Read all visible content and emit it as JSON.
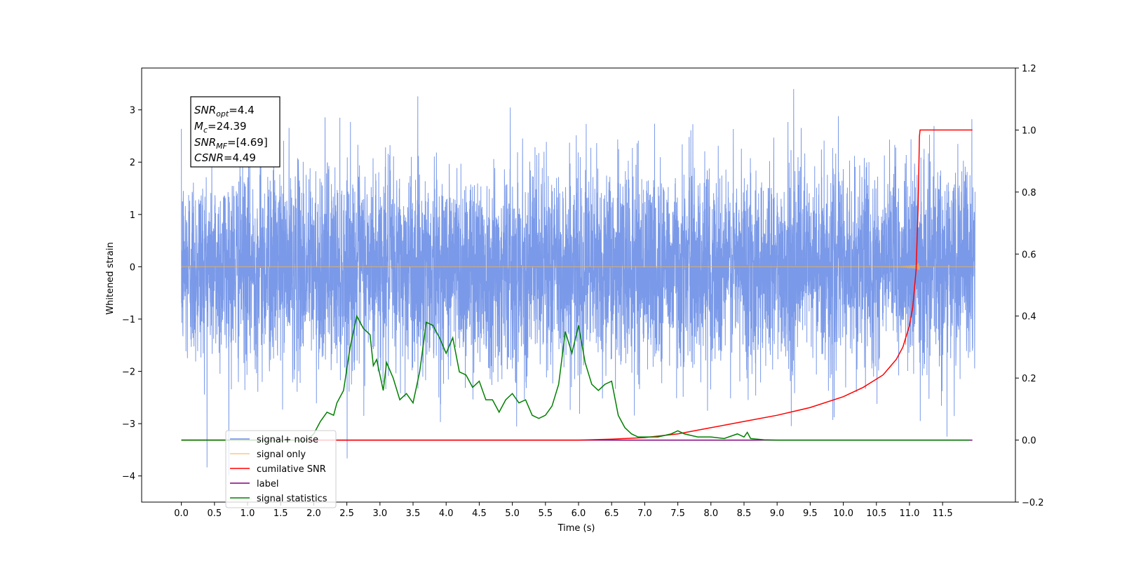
{
  "chart_data": {
    "type": "line",
    "xlabel": "Time (s)",
    "ylabel": "Whitened strain",
    "xlim": [
      -0.6,
      12.6
    ],
    "ylim": [
      -4.5,
      3.8
    ],
    "y2lim": [
      -0.2,
      1.2
    ],
    "x_ticks": [
      "0.0",
      "0.5",
      "1.0",
      "1.5",
      "2.0",
      "2.5",
      "3.0",
      "3.5",
      "4.0",
      "4.5",
      "5.0",
      "5.5",
      "6.0",
      "6.5",
      "7.0",
      "7.5",
      "8.0",
      "8.5",
      "9.0",
      "9.5",
      "10.0",
      "10.5",
      "11.0",
      "11.5"
    ],
    "y_ticks": [
      "−4",
      "−3",
      "−2",
      "−1",
      "0",
      "1",
      "2",
      "3"
    ],
    "y2_ticks": [
      "−0.2",
      "0.0",
      "0.2",
      "0.4",
      "0.6",
      "0.8",
      "1.0",
      "1.2"
    ],
    "annotation": {
      "snr_opt": "=4.4",
      "mc": "=24.39",
      "snr_mf": "=[4.69]",
      "csnr": "=4.49"
    },
    "legend_position": "lower-left",
    "series": [
      {
        "name": "signal+ noise",
        "color": "#6c8ee6",
        "axis": "left"
      },
      {
        "name": "signal only",
        "color": "#f5b34a",
        "axis": "left",
        "merger_time": 11.15
      },
      {
        "name": "cumilative SNR",
        "color": "#ff0000",
        "axis": "right",
        "x": [
          0,
          6.0,
          6.5,
          7.0,
          7.5,
          8.0,
          8.5,
          9.0,
          9.5,
          10.0,
          10.3,
          10.6,
          10.8,
          10.9,
          11.0,
          11.05,
          11.1,
          11.13,
          11.15,
          11.16,
          11.95
        ],
        "values": [
          0,
          0,
          0.003,
          0.008,
          0.02,
          0.04,
          0.06,
          0.08,
          0.105,
          0.14,
          0.17,
          0.21,
          0.26,
          0.3,
          0.37,
          0.43,
          0.55,
          0.75,
          0.98,
          1.0,
          1.0
        ]
      },
      {
        "name": "label",
        "color": "#800080",
        "axis": "right",
        "x": [
          0,
          11.95
        ],
        "values": [
          0,
          0
        ]
      },
      {
        "name": "signal statistics",
        "color": "#008000",
        "axis": "right",
        "x": [
          0,
          0.5,
          1.0,
          1.5,
          1.9,
          2.0,
          2.1,
          2.2,
          2.3,
          2.35,
          2.45,
          2.55,
          2.65,
          2.75,
          2.85,
          2.9,
          2.95,
          3.05,
          3.1,
          3.2,
          3.3,
          3.4,
          3.5,
          3.6,
          3.7,
          3.8,
          3.9,
          4.0,
          4.1,
          4.2,
          4.3,
          4.4,
          4.5,
          4.6,
          4.7,
          4.8,
          4.9,
          5.0,
          5.1,
          5.2,
          5.3,
          5.4,
          5.5,
          5.6,
          5.7,
          5.8,
          5.9,
          6.0,
          6.1,
          6.2,
          6.3,
          6.4,
          6.5,
          6.6,
          6.7,
          6.8,
          6.9,
          7.0,
          7.2,
          7.4,
          7.5,
          7.6,
          7.8,
          8.0,
          8.2,
          8.4,
          8.5,
          8.55,
          8.6,
          8.7,
          8.8,
          9.0,
          9.5,
          11.9
        ],
        "values": [
          0,
          0,
          0,
          0,
          0,
          0.02,
          0.06,
          0.09,
          0.08,
          0.12,
          0.16,
          0.3,
          0.4,
          0.36,
          0.34,
          0.24,
          0.26,
          0.16,
          0.25,
          0.2,
          0.13,
          0.15,
          0.12,
          0.22,
          0.38,
          0.37,
          0.33,
          0.28,
          0.33,
          0.22,
          0.21,
          0.17,
          0.19,
          0.13,
          0.13,
          0.09,
          0.13,
          0.15,
          0.12,
          0.13,
          0.08,
          0.07,
          0.08,
          0.11,
          0.18,
          0.35,
          0.28,
          0.37,
          0.25,
          0.18,
          0.16,
          0.18,
          0.19,
          0.08,
          0.04,
          0.02,
          0.01,
          0.01,
          0.01,
          0.02,
          0.03,
          0.02,
          0.01,
          0.01,
          0.005,
          0.02,
          0.01,
          0.025,
          0.005,
          0.003,
          0.001,
          0,
          0,
          0
        ]
      }
    ]
  }
}
